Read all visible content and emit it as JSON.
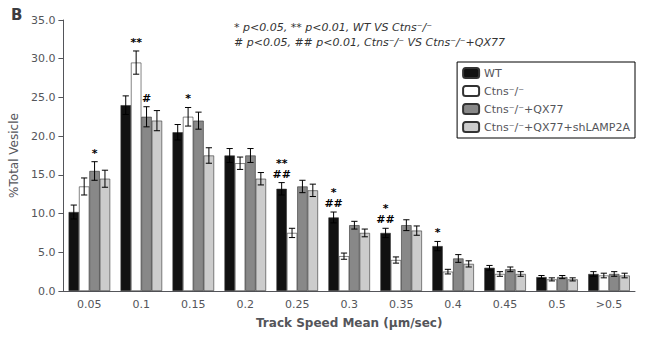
{
  "chart_data": {
    "type": "bar",
    "title": "B",
    "subtitle": "* p<0.05, ** p<0.01, WT VS Ctns⁻/⁻\n# p<0.05, ## p<0.01, Ctns⁻/⁻ VS Ctns⁻/⁻+QX77",
    "xlabel": "Track Speed Mean (μm/sec)",
    "ylabel": "%Total Vesicle",
    "categories": [
      "0.05",
      "0.1",
      "0.15",
      "0.2",
      "0.25",
      "0.3",
      "0.35",
      "0.4",
      "0.45",
      "0.5",
      ">0.5"
    ],
    "series": [
      {
        "name": "WT",
        "color": "#111111",
        "values": [
          10.2,
          24.0,
          20.5,
          17.5,
          13.2,
          9.5,
          7.5,
          5.8,
          3.0,
          1.8,
          2.2
        ],
        "errors": [
          0.9,
          1.2,
          1.0,
          0.9,
          0.8,
          0.7,
          0.6,
          0.6,
          0.3,
          0.2,
          0.3
        ]
      },
      {
        "name": "Ctns⁻/⁻",
        "color": "#ffffff",
        "values": [
          13.5,
          29.5,
          22.5,
          16.5,
          7.5,
          4.5,
          4.0,
          2.5,
          2.2,
          1.5,
          2.0
        ],
        "errors": [
          1.1,
          1.5,
          1.2,
          0.8,
          0.6,
          0.4,
          0.4,
          0.3,
          0.3,
          0.2,
          0.3
        ]
      },
      {
        "name": "Ctns⁻/⁻+QX77",
        "color": "#888888",
        "values": [
          15.5,
          22.5,
          22.0,
          17.5,
          13.5,
          8.5,
          8.5,
          4.2,
          2.8,
          1.8,
          2.2
        ],
        "errors": [
          1.2,
          1.3,
          1.1,
          0.9,
          0.8,
          0.5,
          0.7,
          0.5,
          0.3,
          0.2,
          0.3
        ]
      },
      {
        "name": "Ctns⁻/⁻+QX77+shLAMP2A",
        "color": "#cccccc",
        "values": [
          14.5,
          22.0,
          17.5,
          14.5,
          13.0,
          7.5,
          7.8,
          3.5,
          2.2,
          1.5,
          2.0
        ],
        "errors": [
          1.1,
          1.3,
          1.0,
          0.8,
          0.8,
          0.5,
          0.6,
          0.4,
          0.3,
          0.2,
          0.3
        ]
      }
    ],
    "annotations": [
      {
        "category": "0.05",
        "series": "Ctns⁻/⁻+QX77",
        "text": "*"
      },
      {
        "category": "0.1",
        "series": "Ctns⁻/⁻",
        "text": "**"
      },
      {
        "category": "0.1",
        "series": "Ctns⁻/⁻+QX77",
        "text": "#"
      },
      {
        "category": "0.15",
        "series": "Ctns⁻/⁻",
        "text": "*"
      },
      {
        "category": "0.25",
        "series": "WT",
        "text": "##"
      },
      {
        "category": "0.25",
        "series": "WT",
        "text": "**"
      },
      {
        "category": "0.3",
        "series": "WT",
        "text": "##"
      },
      {
        "category": "0.3",
        "series": "WT",
        "text": "*"
      },
      {
        "category": "0.35",
        "series": "WT",
        "text": "##"
      },
      {
        "category": "0.35",
        "series": "WT",
        "text": "*"
      },
      {
        "category": "0.4",
        "series": "WT",
        "text": "*"
      }
    ],
    "ylim": [
      0,
      35.0
    ],
    "yticks": [
      {
        "value": 0,
        "label": "0.0"
      },
      {
        "value": 5.0,
        "label": "5.0"
      },
      {
        "value": 10.0,
        "label": "10.0"
      },
      {
        "value": 15.0,
        "label": "15.0"
      },
      {
        "value": 20.0,
        "label": "20.0"
      },
      {
        "value": 25.0,
        "label": "25.0"
      },
      {
        "value": 30.0,
        "label": "30.0"
      },
      {
        "value": 35.0,
        "label": "35.0"
      }
    ],
    "grid": false,
    "legend": "upper right"
  }
}
